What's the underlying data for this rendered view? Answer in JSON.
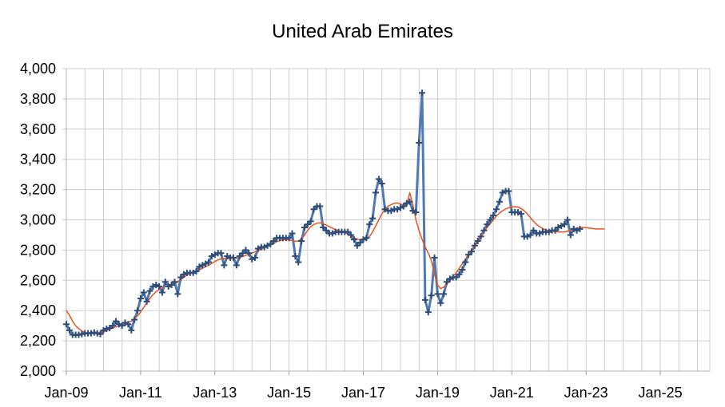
{
  "chart_data": {
    "type": "line",
    "title": "United Arab Emirates",
    "xlabel": "",
    "ylabel": "",
    "ylim": [
      2000,
      4000
    ],
    "yticks": [
      "2,000",
      "2,200",
      "2,400",
      "2,600",
      "2,800",
      "3,000",
      "3,200",
      "3,400",
      "3,600",
      "3,800",
      "4,000"
    ],
    "xtick_labels": [
      "Jan-09",
      "Jan-11",
      "Jan-13",
      "Jan-15",
      "Jan-17",
      "Jan-19",
      "Jan-21",
      "Jan-23",
      "Jan-25"
    ],
    "xlim": [
      "2009-01",
      "2026-05"
    ],
    "grid": true,
    "legend": "none",
    "series": [
      {
        "style": "monthly-markers",
        "color": "#4f7ab3",
        "marker_color": "#2e4d7a",
        "start": "2009-01",
        "values": [
          2310,
          2270,
          2240,
          2240,
          2240,
          2245,
          2250,
          2250,
          2250,
          2255,
          2250,
          2245,
          2270,
          2280,
          2285,
          2300,
          2330,
          2310,
          2300,
          2320,
          2310,
          2270,
          2340,
          2400,
          2480,
          2520,
          2460,
          2530,
          2560,
          2570,
          2560,
          2520,
          2590,
          2560,
          2570,
          2590,
          2510,
          2620,
          2640,
          2650,
          2650,
          2650,
          2660,
          2690,
          2700,
          2710,
          2720,
          2760,
          2770,
          2780,
          2780,
          2700,
          2760,
          2750,
          2750,
          2700,
          2760,
          2780,
          2800,
          2780,
          2740,
          2750,
          2810,
          2820,
          2820,
          2830,
          2840,
          2860,
          2880,
          2880,
          2880,
          2880,
          2880,
          2910,
          2760,
          2720,
          2860,
          2950,
          2970,
          2990,
          3070,
          3090,
          3090,
          2950,
          2930,
          2910,
          2910,
          2920,
          2920,
          2920,
          2920,
          2920,
          2900,
          2870,
          2830,
          2850,
          2870,
          2880,
          2970,
          3010,
          3180,
          3270,
          3240,
          3070,
          3060,
          3060,
          3070,
          3070,
          3080,
          3090,
          3110,
          3120,
          3060,
          3050,
          3510,
          3840,
          2470,
          2390,
          2500,
          2750,
          2510,
          2450,
          2510,
          2590,
          2610,
          2620,
          2620,
          2640,
          2670,
          2720,
          2770,
          2790,
          2830,
          2860,
          2890,
          2930,
          2970,
          3000,
          3030,
          3070,
          3120,
          3180,
          3190,
          3190,
          3050,
          3050,
          3050,
          3040,
          2890,
          2890,
          2900,
          2930,
          2910,
          2910,
          2920,
          2920,
          2920,
          2930,
          2930,
          2950,
          2960,
          2970,
          3000,
          2900,
          2940,
          2930,
          2940
        ]
      },
      {
        "style": "smooth-trend",
        "color": "#e8541c",
        "start": "2009-01",
        "values": [
          2400,
          2370,
          2330,
          2300,
          2280,
          2265,
          2255,
          2250,
          2250,
          2250,
          2252,
          2255,
          2260,
          2268,
          2276,
          2285,
          2293,
          2300,
          2308,
          2315,
          2322,
          2330,
          2345,
          2365,
          2390,
          2420,
          2450,
          2480,
          2505,
          2525,
          2540,
          2550,
          2560,
          2565,
          2570,
          2578,
          2590,
          2605,
          2620,
          2635,
          2645,
          2652,
          2660,
          2670,
          2680,
          2690,
          2700,
          2712,
          2725,
          2735,
          2742,
          2745,
          2745,
          2745,
          2746,
          2748,
          2752,
          2758,
          2765,
          2772,
          2780,
          2788,
          2796,
          2805,
          2815,
          2825,
          2835,
          2845,
          2855,
          2862,
          2868,
          2870,
          2868,
          2862,
          2858,
          2860,
          2875,
          2900,
          2930,
          2955,
          2970,
          2978,
          2980,
          2975,
          2965,
          2955,
          2945,
          2935,
          2928,
          2922,
          2915,
          2905,
          2893,
          2882,
          2873,
          2867,
          2866,
          2872,
          2890,
          2920,
          2960,
          3000,
          3040,
          3070,
          3090,
          3100,
          3110,
          3112,
          3105,
          3095,
          3090,
          3180,
          3100,
          3000,
          2930,
          2870,
          2820,
          2780,
          2730,
          2640,
          2570,
          2545,
          2555,
          2575,
          2600,
          2625,
          2650,
          2680,
          2710,
          2740,
          2770,
          2800,
          2830,
          2860,
          2890,
          2920,
          2950,
          2975,
          3000,
          3025,
          3045,
          3060,
          3072,
          3080,
          3085,
          3088,
          3085,
          3075,
          3060,
          3040,
          3015,
          2990,
          2970,
          2955,
          2942,
          2933,
          2928,
          2925,
          2922,
          2920,
          2920,
          2920,
          2925,
          2932,
          2940,
          2945,
          2948,
          2950,
          2948,
          2945,
          2943,
          2940,
          2940,
          2940,
          2940
        ]
      }
    ]
  }
}
